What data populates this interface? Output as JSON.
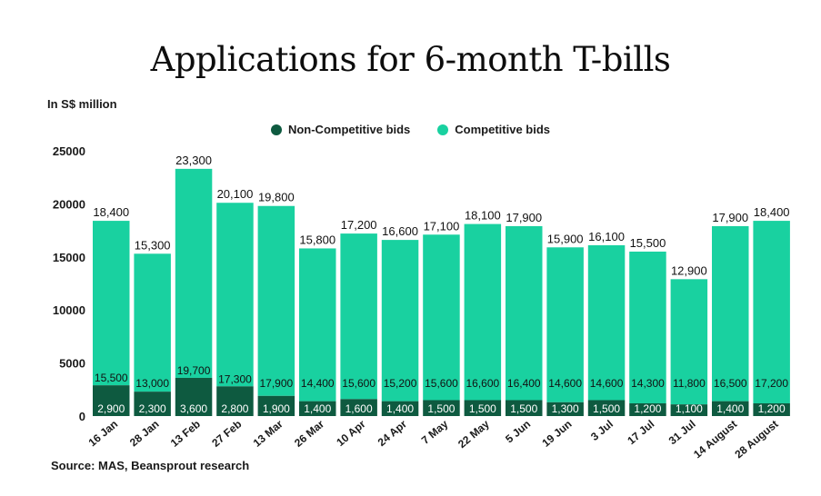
{
  "chart_data": {
    "type": "bar",
    "stacked": true,
    "title": "Applications for 6-month T-bills",
    "ylabel": "In S$ million",
    "xlabel": "",
    "ylim": [
      0,
      25000
    ],
    "yticks": [
      0,
      5000,
      10000,
      15000,
      20000,
      25000
    ],
    "grid": false,
    "legend_position": "top-center",
    "categories": [
      "16 Jan",
      "28 Jan",
      "13 Feb",
      "27 Feb",
      "13 Mar",
      "26 Mar",
      "10 Apr",
      "24 Apr",
      "7 May",
      "22 May",
      "5 Jun",
      "19 Jun",
      "3 Jul",
      "17 Jul",
      "31 Jul",
      "14 August",
      "28 August"
    ],
    "series": [
      {
        "name": "Non-Competitive bids",
        "color": "#0e5a40",
        "values": [
          2900,
          2300,
          3600,
          2800,
          1900,
          1400,
          1600,
          1400,
          1500,
          1500,
          1500,
          1300,
          1500,
          1200,
          1100,
          1400,
          1200
        ]
      },
      {
        "name": "Competitive bids",
        "color": "#19d1a0",
        "values": [
          15500,
          13000,
          19700,
          17300,
          17900,
          14400,
          15600,
          15200,
          15600,
          16600,
          16400,
          14600,
          14600,
          14300,
          11800,
          16500,
          17200
        ]
      }
    ],
    "totals": [
      18400,
      15300,
      23300,
      20100,
      19800,
      15800,
      17200,
      16600,
      17100,
      18100,
      17900,
      15900,
      16100,
      15500,
      12900,
      17900,
      18400
    ],
    "source": "Source: MAS, Beansprout research"
  }
}
